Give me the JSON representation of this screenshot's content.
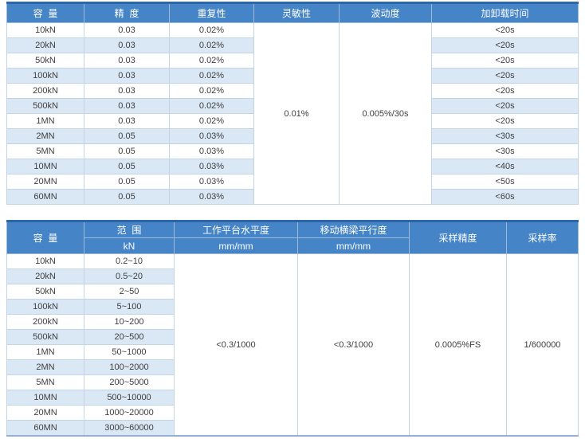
{
  "colors": {
    "header_bg": "#4584C6",
    "top_bar": "#2F66A8",
    "stripe": "#DAE7F4",
    "border": "#C3D4E7",
    "header_text": "#FFFFFF",
    "body_text": "#3F3F3F"
  },
  "table1": {
    "headers": [
      "容  量",
      "精  度",
      "重复性",
      "灵敏性",
      "波动度",
      "加卸载时间"
    ],
    "sensitivity": "0.01%",
    "fluctuation": "0.005%/30s",
    "rows": [
      {
        "capacity": "10kN",
        "precision": "0.03",
        "repeatability": "0.02%",
        "load_time": "<20s"
      },
      {
        "capacity": "20kN",
        "precision": "0.03",
        "repeatability": "0.02%",
        "load_time": "<20s"
      },
      {
        "capacity": "50kN",
        "precision": "0.03",
        "repeatability": "0.02%",
        "load_time": "<20s"
      },
      {
        "capacity": "100kN",
        "precision": "0.03",
        "repeatability": "0.02%",
        "load_time": "<20s"
      },
      {
        "capacity": "200kN",
        "precision": "0.03",
        "repeatability": "0.02%",
        "load_time": "<20s"
      },
      {
        "capacity": "500kN",
        "precision": "0.03",
        "repeatability": "0.02%",
        "load_time": "<20s"
      },
      {
        "capacity": "1MN",
        "precision": "0.03",
        "repeatability": "0.02%",
        "load_time": "<20s"
      },
      {
        "capacity": "2MN",
        "precision": "0.05",
        "repeatability": "0.03%",
        "load_time": "<30s"
      },
      {
        "capacity": "5MN",
        "precision": "0.05",
        "repeatability": "0.03%",
        "load_time": "<30s"
      },
      {
        "capacity": "10MN",
        "precision": "0.05",
        "repeatability": "0.03%",
        "load_time": "<40s"
      },
      {
        "capacity": "20MN",
        "precision": "0.05",
        "repeatability": "0.03%",
        "load_time": "<50s"
      },
      {
        "capacity": "60MN",
        "precision": "0.05",
        "repeatability": "0.03%",
        "load_time": "<60s"
      }
    ]
  },
  "table2": {
    "headers": {
      "capacity": "容  量",
      "range_label": "范  围",
      "range_unit": "kN",
      "platform_label": "工作平台水平度",
      "platform_unit": "mm/mm",
      "crosshead_label": "移动横梁平行度",
      "crosshead_unit": "mm/mm",
      "sampling_accuracy_label": "采样精度",
      "sampling_rate_label": "采样率"
    },
    "platform_levelness": "<0.3/1000",
    "crosshead_parallelism": "<0.3/1000",
    "sampling_accuracy": "0.0005%FS",
    "sampling_rate": "1/600000",
    "rows": [
      {
        "capacity": "10kN",
        "range": "0.2~10"
      },
      {
        "capacity": "20kN",
        "range": "0.5~20"
      },
      {
        "capacity": "50kN",
        "range": "2~50"
      },
      {
        "capacity": "100kN",
        "range": "5~100"
      },
      {
        "capacity": "200kN",
        "range": "10~200"
      },
      {
        "capacity": "500kN",
        "range": "20~500"
      },
      {
        "capacity": "1MN",
        "range": "50~1000"
      },
      {
        "capacity": "2MN",
        "range": "100~2000"
      },
      {
        "capacity": "5MN",
        "range": "200~5000"
      },
      {
        "capacity": "10MN",
        "range": "500~10000"
      },
      {
        "capacity": "20MN",
        "range": "1000~20000"
      },
      {
        "capacity": "60MN",
        "range": "3000~60000"
      }
    ]
  }
}
